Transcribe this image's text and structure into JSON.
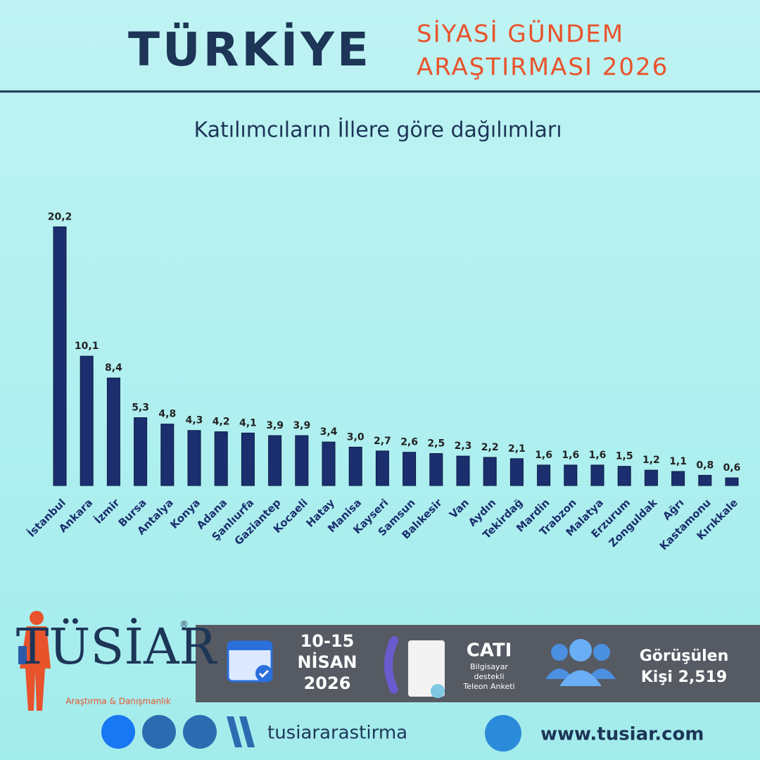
{
  "header": {
    "title": "TÜRKİYE",
    "subtitle_line1": "SİYASİ GÜNDEM",
    "subtitle_line2": "ARAŞTIRMASI 2026"
  },
  "chart_data": {
    "type": "bar",
    "title": "Katılımcıların İllere göre dağılımları",
    "categories": [
      "İstanbul",
      "Ankara",
      "İzmir",
      "Bursa",
      "Antalya",
      "Konya",
      "Adana",
      "Şanlıurfa",
      "Gaziantep",
      "Kocaeli",
      "Hatay",
      "Manisa",
      "Kayseri",
      "Samsun",
      "Balıkesir",
      "Van",
      "Aydın",
      "Tekirdağ",
      "Mardin",
      "Trabzon",
      "Malatya",
      "Erzurum",
      "Zonguldak",
      "Ağrı",
      "Kastamonu",
      "Kırıkkale"
    ],
    "values": [
      20.2,
      10.1,
      8.4,
      5.3,
      4.8,
      4.3,
      4.2,
      4.1,
      3.9,
      3.9,
      3.4,
      3.0,
      2.7,
      2.6,
      2.5,
      2.3,
      2.2,
      2.1,
      1.6,
      1.6,
      1.6,
      1.5,
      1.2,
      1.1,
      0.8,
      0.6
    ],
    "value_labels": [
      "20,2",
      "10,1",
      "8,4",
      "5,3",
      "4,8",
      "4,3",
      "4,2",
      "4,1",
      "3,9",
      "3,9",
      "3,4",
      "3,0",
      "2,7",
      "2,6",
      "2,5",
      "2,3",
      "2,2",
      "2,1",
      "1,6",
      "1,6",
      "1,6",
      "1,5",
      "1,2",
      "1,1",
      "0,8",
      "0,6"
    ],
    "color": "#1b2f6e"
  },
  "footer": {
    "logo": "TÜSİAR",
    "registered": "®",
    "logo_subtitle": "Araştırma & Danışmanlık",
    "date_line1": "10-15",
    "date_line2": "NİSAN",
    "date_line3": "2026",
    "method_title": "CATI",
    "method_line1": "Bilgisayar",
    "method_line2": "destekli",
    "method_line3": "Teleon Anketi",
    "sample_line1": "Görüşülen",
    "sample_line2": "Kişi 2,519",
    "social_handle": "tusiararastirma",
    "website": "www.tusiar.com"
  }
}
